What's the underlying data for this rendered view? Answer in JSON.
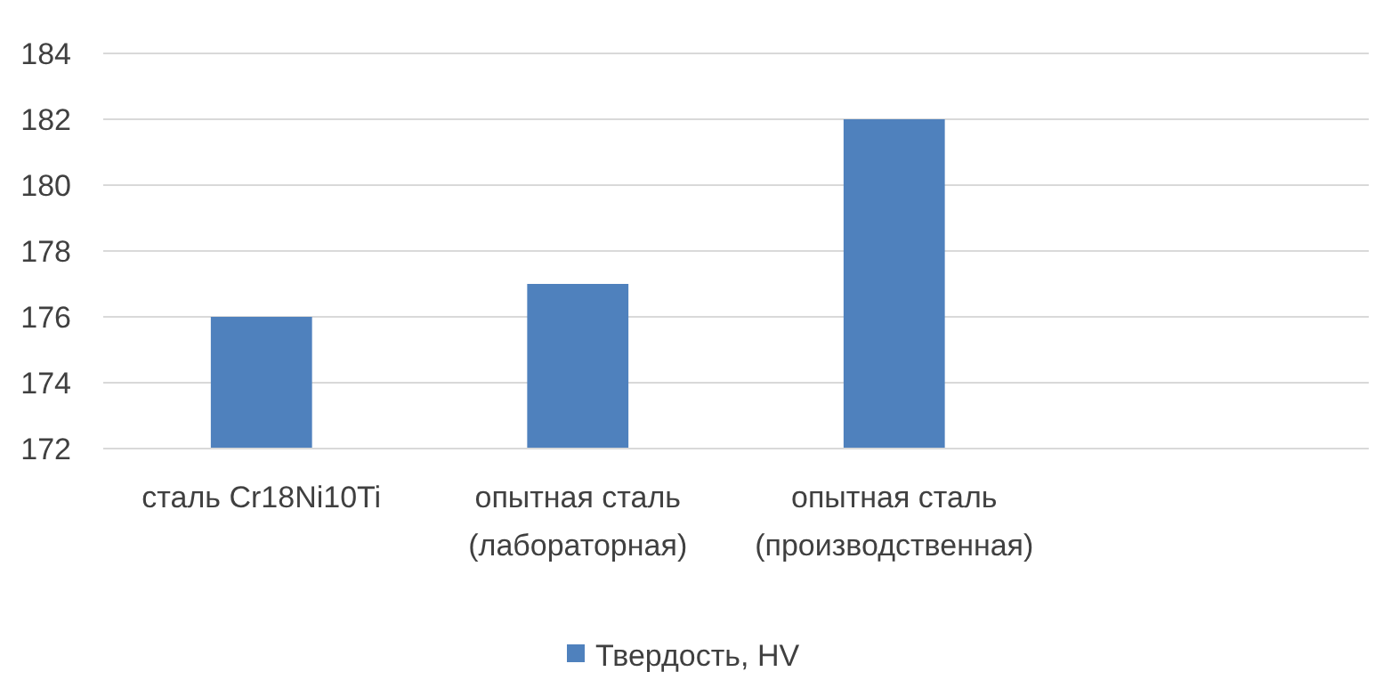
{
  "chart_data": {
    "type": "bar",
    "categories": [
      "сталь Cr18Ni10Ti",
      "опытная сталь\n(лабораторная)",
      "опытная сталь\n(производственная)",
      null
    ],
    "series": [
      {
        "name": "Твердость, HV",
        "color": "#4f81bd",
        "values": [
          176,
          177,
          182,
          null
        ]
      }
    ],
    "ylim": [
      172,
      184
    ],
    "yticks": [
      172,
      174,
      176,
      178,
      180,
      182,
      184
    ],
    "grid": "y",
    "legend": "bottom"
  }
}
